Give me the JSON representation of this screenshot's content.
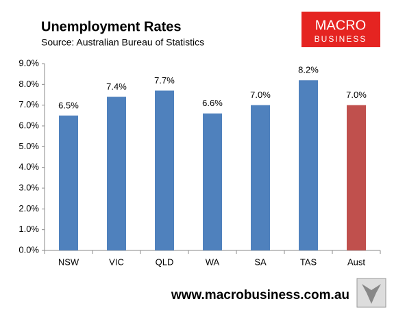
{
  "chart_data": {
    "type": "bar",
    "title": "Unemployment Rates",
    "subtitle": "Source: Australian Bureau of Statistics",
    "logo": [
      "MACRO",
      "BUSINESS"
    ],
    "footer": "www.macrobusiness.com.au",
    "categories": [
      "NSW",
      "VIC",
      "QLD",
      "WA",
      "SA",
      "TAS",
      "Aust"
    ],
    "values": [
      6.5,
      7.4,
      7.7,
      6.6,
      7.0,
      8.2,
      7.0
    ],
    "value_labels": [
      "6.5%",
      "7.4%",
      "7.7%",
      "6.6%",
      "7.0%",
      "8.2%",
      "7.0%"
    ],
    "colors": [
      "#4f81bd",
      "#4f81bd",
      "#4f81bd",
      "#4f81bd",
      "#4f81bd",
      "#4f81bd",
      "#c0504d"
    ],
    "ylim": [
      0,
      9
    ],
    "yticks": [
      {
        "value": 0,
        "label": "0.0%"
      },
      {
        "value": 1,
        "label": "1.0%"
      },
      {
        "value": 2,
        "label": "2.0%"
      },
      {
        "value": 3,
        "label": "3.0%"
      },
      {
        "value": 4,
        "label": "4.0%"
      },
      {
        "value": 5,
        "label": "5.0%"
      },
      {
        "value": 6,
        "label": "6.0%"
      },
      {
        "value": 7,
        "label": "7.0%"
      },
      {
        "value": 8,
        "label": "8.0%"
      },
      {
        "value": 9,
        "label": "9.0%"
      }
    ],
    "grid": false
  }
}
